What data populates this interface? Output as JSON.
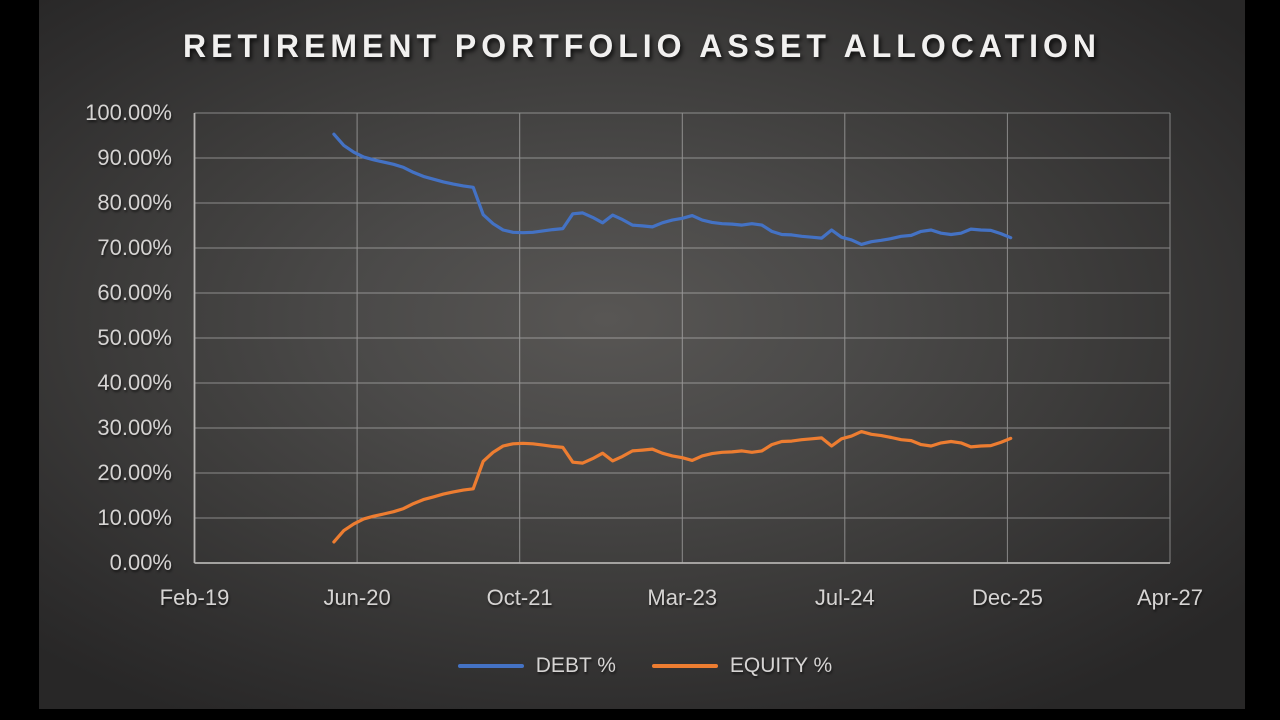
{
  "title": "RETIREMENT PORTFOLIO ASSET ALLOCATION",
  "colors": {
    "debt_line": "#4472C4",
    "equity_line": "#ED7D31",
    "tick_text": "#D6D4D3",
    "gridline": "#C9C9C9",
    "slide_background_center": "#565452",
    "slide_background_edge": "#282727",
    "frame": "#000000"
  },
  "legend": {
    "debt_label": "DEBT %",
    "equity_label": "EQUITY %"
  },
  "chart_data": {
    "type": "line",
    "title": "RETIREMENT PORTFOLIO ASSET ALLOCATION",
    "xlabel": "",
    "ylabel": "",
    "grid": true,
    "legend_position": "bottom",
    "ylim": [
      0,
      100
    ],
    "y_tick_values": [
      0,
      10,
      20,
      30,
      40,
      50,
      60,
      70,
      80,
      90,
      100
    ],
    "y_tick_labels": [
      "0.00%",
      "10.00%",
      "20.00%",
      "30.00%",
      "40.00%",
      "50.00%",
      "60.00%",
      "70.00%",
      "80.00%",
      "90.00%",
      "100.00%"
    ],
    "x_tick_labels": [
      "Feb-19",
      "Jun-20",
      "Oct-21",
      "Mar-23",
      "Jul-24",
      "Dec-25",
      "Apr-27"
    ],
    "x_axis_range_months": [
      "Feb-19",
      "Apr-27"
    ],
    "x_axis_total_month_intervals": 98,
    "points_interval": "monthly",
    "series_start_offset_months": 14,
    "series_start_month": "Apr-20",
    "series_end_month": "Dec-25",
    "series": [
      {
        "name": "DEBT %",
        "color": "#4472C4",
        "values": [
          95.3,
          92.8,
          91.3,
          90.2,
          89.6,
          89.1,
          88.6,
          87.9,
          86.8,
          85.9,
          85.3,
          84.7,
          84.2,
          83.8,
          83.5,
          77.4,
          75.4,
          74.0,
          73.5,
          73.4,
          73.5,
          73.8,
          74.1,
          74.3,
          77.6,
          77.8,
          76.8,
          75.6,
          77.3,
          76.3,
          75.1,
          74.9,
          74.7,
          75.6,
          76.2,
          76.6,
          77.2,
          76.2,
          75.7,
          75.4,
          75.3,
          75.1,
          75.4,
          75.1,
          73.7,
          73.0,
          72.9,
          72.6,
          72.4,
          72.2,
          74.0,
          72.4,
          71.8,
          70.8,
          71.4,
          71.7,
          72.1,
          72.6,
          72.8,
          73.7,
          74.0,
          73.3,
          73.0,
          73.3,
          74.2,
          74.0,
          73.9,
          73.2,
          72.3
        ]
      },
      {
        "name": "EQUITY %",
        "color": "#ED7D31",
        "values": [
          4.7,
          7.2,
          8.7,
          9.8,
          10.4,
          10.9,
          11.4,
          12.1,
          13.2,
          14.1,
          14.7,
          15.3,
          15.8,
          16.2,
          16.5,
          22.6,
          24.6,
          26.0,
          26.5,
          26.6,
          26.5,
          26.2,
          25.9,
          25.7,
          22.4,
          22.2,
          23.2,
          24.4,
          22.7,
          23.7,
          24.9,
          25.1,
          25.3,
          24.4,
          23.8,
          23.4,
          22.8,
          23.8,
          24.3,
          24.6,
          24.7,
          24.9,
          24.6,
          24.9,
          26.3,
          27.0,
          27.1,
          27.4,
          27.6,
          27.8,
          26.0,
          27.6,
          28.2,
          29.2,
          28.6,
          28.3,
          27.9,
          27.4,
          27.2,
          26.3,
          26.0,
          26.7,
          27.0,
          26.7,
          25.8,
          26.0,
          26.1,
          26.8,
          27.7
        ]
      }
    ]
  }
}
